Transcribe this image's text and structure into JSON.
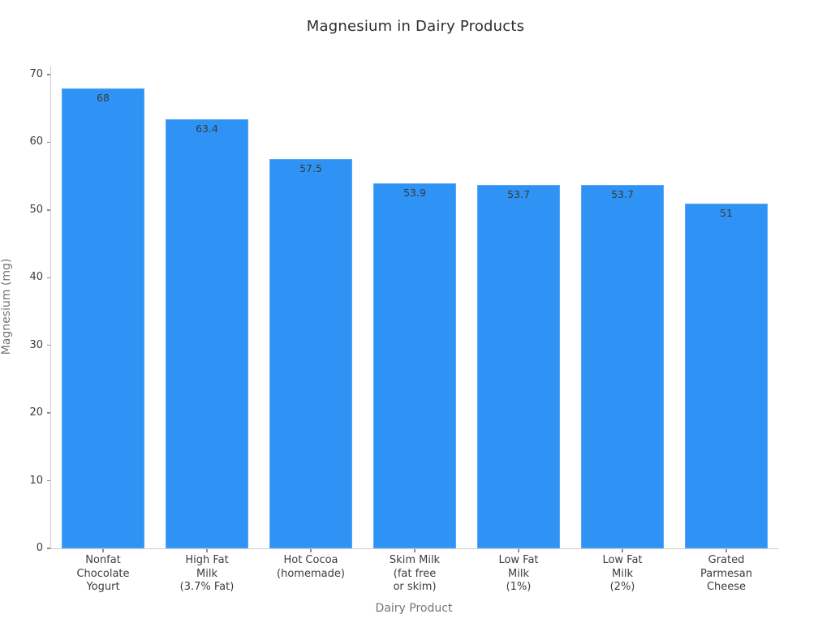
{
  "chart_data": {
    "type": "bar",
    "title": "Magnesium in Dairy Products",
    "xlabel": "Dairy Product",
    "ylabel": "Magnesium (mg)",
    "categories": [
      "Nonfat\nChocolate\nYogurt",
      "High Fat\nMilk\n(3.7% Fat)",
      "Hot Cocoa\n(homemade)",
      "Skim Milk\n(fat free\nor skim)",
      "Low Fat\nMilk\n(1%)",
      "Low Fat\nMilk\n(2%)",
      "Grated\nParmesan\nCheese"
    ],
    "values": [
      68,
      63.4,
      57.5,
      53.9,
      53.7,
      53.7,
      51
    ],
    "value_labels": [
      "68",
      "63.4",
      "57.5",
      "53.9",
      "53.7",
      "53.7",
      "51"
    ],
    "yticks": [
      0,
      10,
      20,
      30,
      40,
      50,
      60,
      70
    ],
    "ytick_labels": [
      "0",
      "10",
      "20",
      "30",
      "40",
      "50",
      "60",
      "70"
    ],
    "ylim": [
      0,
      71.2
    ],
    "bar_color": "#2e93f4",
    "grid": false,
    "legend": null,
    "colors": {
      "bar": "#2e93f4",
      "bar_edge": "#55a7f6",
      "title_text": "#2d2d2d",
      "tick_text": "#3d3d3d",
      "axis_label_text": "#757575",
      "spine": "#cccccc",
      "background": "#ffffff"
    }
  }
}
